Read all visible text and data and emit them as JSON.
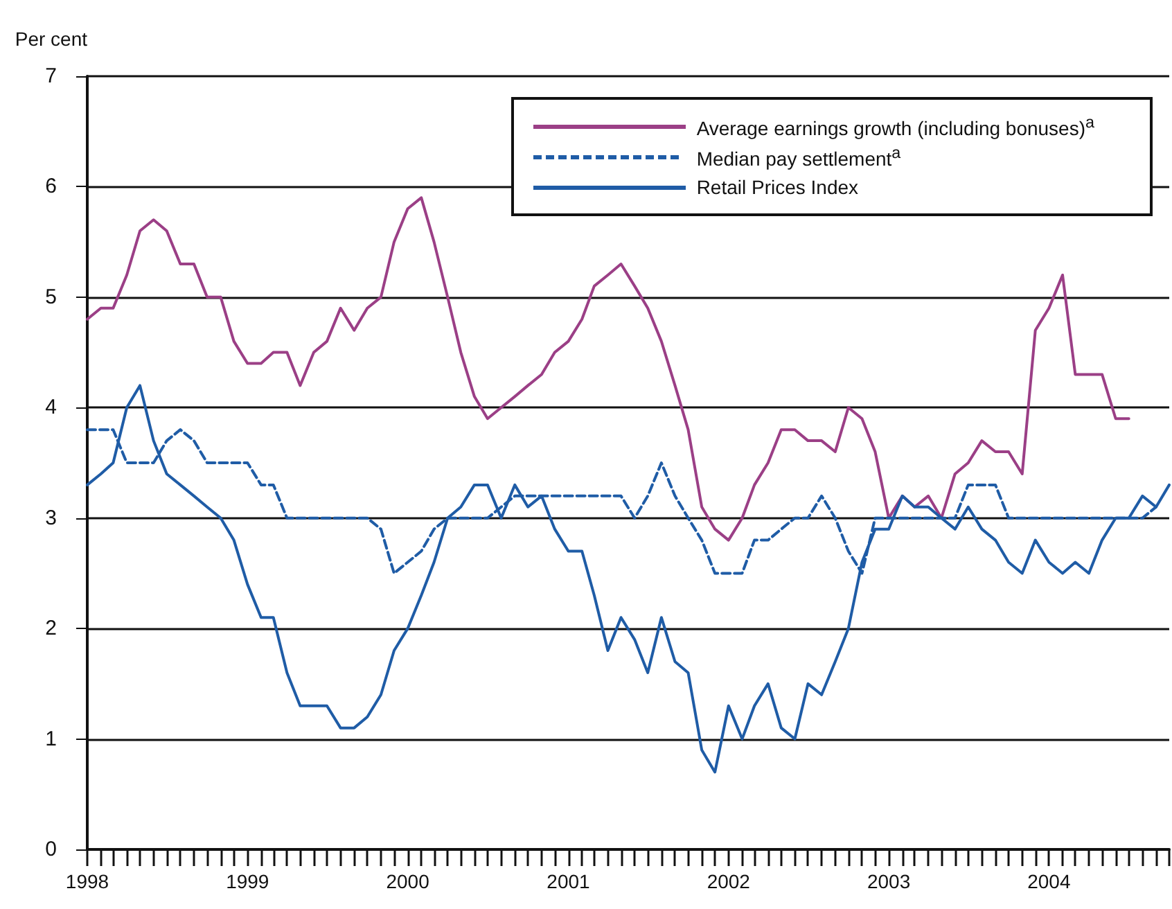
{
  "chart_data": {
    "type": "line",
    "ylabel": "Per cent",
    "x": [
      "1998-01",
      "1998-02",
      "1998-03",
      "1998-04",
      "1998-05",
      "1998-06",
      "1998-07",
      "1998-08",
      "1998-09",
      "1998-10",
      "1998-11",
      "1998-12",
      "1999-01",
      "1999-02",
      "1999-03",
      "1999-04",
      "1999-05",
      "1999-06",
      "1999-07",
      "1999-08",
      "1999-09",
      "1999-10",
      "1999-11",
      "1999-12",
      "2000-01",
      "2000-02",
      "2000-03",
      "2000-04",
      "2000-05",
      "2000-06",
      "2000-07",
      "2000-08",
      "2000-09",
      "2000-10",
      "2000-11",
      "2000-12",
      "2001-01",
      "2001-02",
      "2001-03",
      "2001-04",
      "2001-05",
      "2001-06",
      "2001-07",
      "2001-08",
      "2001-09",
      "2001-10",
      "2001-11",
      "2001-12",
      "2002-01",
      "2002-02",
      "2002-03",
      "2002-04",
      "2002-05",
      "2002-06",
      "2002-07",
      "2002-08",
      "2002-09",
      "2002-10",
      "2002-11",
      "2002-12",
      "2003-01",
      "2003-02",
      "2003-03",
      "2003-04",
      "2003-05",
      "2003-06",
      "2003-07",
      "2003-08",
      "2003-09",
      "2003-10",
      "2003-11",
      "2003-12",
      "2004-01",
      "2004-02",
      "2004-03",
      "2004-04",
      "2004-05",
      "2004-06",
      "2004-07",
      "2004-08",
      "2004-09",
      "2004-10"
    ],
    "series": [
      {
        "name": "Average earnings growth (including bonuses)$^{a}$",
        "color": "#9b3f86",
        "line_style": "solid",
        "values": [
          4.8,
          4.9,
          4.9,
          5.2,
          5.6,
          5.7,
          5.6,
          5.3,
          5.3,
          5.0,
          5.0,
          4.6,
          4.4,
          4.4,
          4.5,
          4.5,
          4.2,
          4.5,
          4.6,
          4.9,
          4.7,
          4.9,
          5.0,
          5.5,
          5.8,
          5.9,
          5.5,
          5.0,
          4.5,
          4.1,
          3.9,
          4.0,
          4.1,
          4.2,
          4.3,
          4.5,
          4.6,
          4.8,
          5.1,
          5.2,
          5.3,
          5.1,
          4.9,
          4.6,
          4.2,
          3.8,
          3.1,
          2.9,
          2.8,
          3.0,
          3.3,
          3.5,
          3.8,
          3.8,
          3.7,
          3.7,
          3.6,
          4.0,
          3.9,
          3.6,
          3.0,
          3.2,
          3.1,
          3.2,
          3.0,
          3.4,
          3.5,
          3.7,
          3.6,
          3.6,
          3.4,
          4.7,
          4.9,
          5.2,
          4.3,
          4.3,
          4.3,
          3.9,
          3.9,
          null,
          null,
          null
        ]
      },
      {
        "name": "Median pay settlement$^{a}$",
        "color": "#1f5ca6",
        "line_style": "dashed",
        "values": [
          3.8,
          3.8,
          3.8,
          3.5,
          3.5,
          3.5,
          3.7,
          3.8,
          3.7,
          3.5,
          3.5,
          3.5,
          3.5,
          3.3,
          3.3,
          3.0,
          3.0,
          3.0,
          3.0,
          3.0,
          3.0,
          3.0,
          2.9,
          2.5,
          2.6,
          2.7,
          2.9,
          3.0,
          3.0,
          3.0,
          3.0,
          3.1,
          3.2,
          3.2,
          3.2,
          3.2,
          3.2,
          3.2,
          3.2,
          3.2,
          3.2,
          3.0,
          3.2,
          3.5,
          3.2,
          3.0,
          2.8,
          2.5,
          2.5,
          2.5,
          2.8,
          2.8,
          2.9,
          3.0,
          3.0,
          3.2,
          3.0,
          2.7,
          2.5,
          3.0,
          3.0,
          3.0,
          3.0,
          3.0,
          3.0,
          3.0,
          3.3,
          3.3,
          3.3,
          3.0,
          3.0,
          3.0,
          3.0,
          3.0,
          3.0,
          3.0,
          3.0,
          3.0,
          3.0,
          3.0,
          3.1,
          null
        ]
      },
      {
        "name": "Retail Prices Index",
        "color": "#1f5ca6",
        "line_style": "solid",
        "values": [
          3.3,
          3.4,
          3.5,
          4.0,
          4.2,
          3.7,
          3.4,
          3.3,
          3.2,
          3.1,
          3.0,
          2.8,
          2.4,
          2.1,
          2.1,
          1.6,
          1.3,
          1.3,
          1.3,
          1.1,
          1.1,
          1.2,
          1.4,
          1.8,
          2.0,
          2.3,
          2.6,
          3.0,
          3.1,
          3.3,
          3.3,
          3.0,
          3.3,
          3.1,
          3.2,
          2.9,
          2.7,
          2.7,
          2.3,
          1.8,
          2.1,
          1.9,
          1.6,
          2.1,
          1.7,
          1.6,
          0.9,
          0.7,
          1.3,
          1.0,
          1.3,
          1.5,
          1.1,
          1.0,
          1.5,
          1.4,
          1.7,
          2.0,
          2.6,
          2.9,
          2.9,
          3.2,
          3.1,
          3.1,
          3.0,
          2.9,
          3.1,
          2.9,
          2.8,
          2.6,
          2.5,
          2.8,
          2.6,
          2.5,
          2.6,
          2.5,
          2.8,
          3.0,
          3.0,
          3.2,
          3.1,
          3.3
        ]
      }
    ],
    "xlim": [
      "1998-01",
      "2004-10"
    ],
    "xticks": [
      "1998",
      "1999",
      "2000",
      "2001",
      "2002",
      "2003",
      "2004"
    ],
    "ylim": [
      0,
      7
    ],
    "yticks": [
      0,
      1,
      2,
      3,
      4,
      5,
      6,
      7
    ],
    "grid": "y",
    "legend": "top right",
    "marker": "none"
  }
}
